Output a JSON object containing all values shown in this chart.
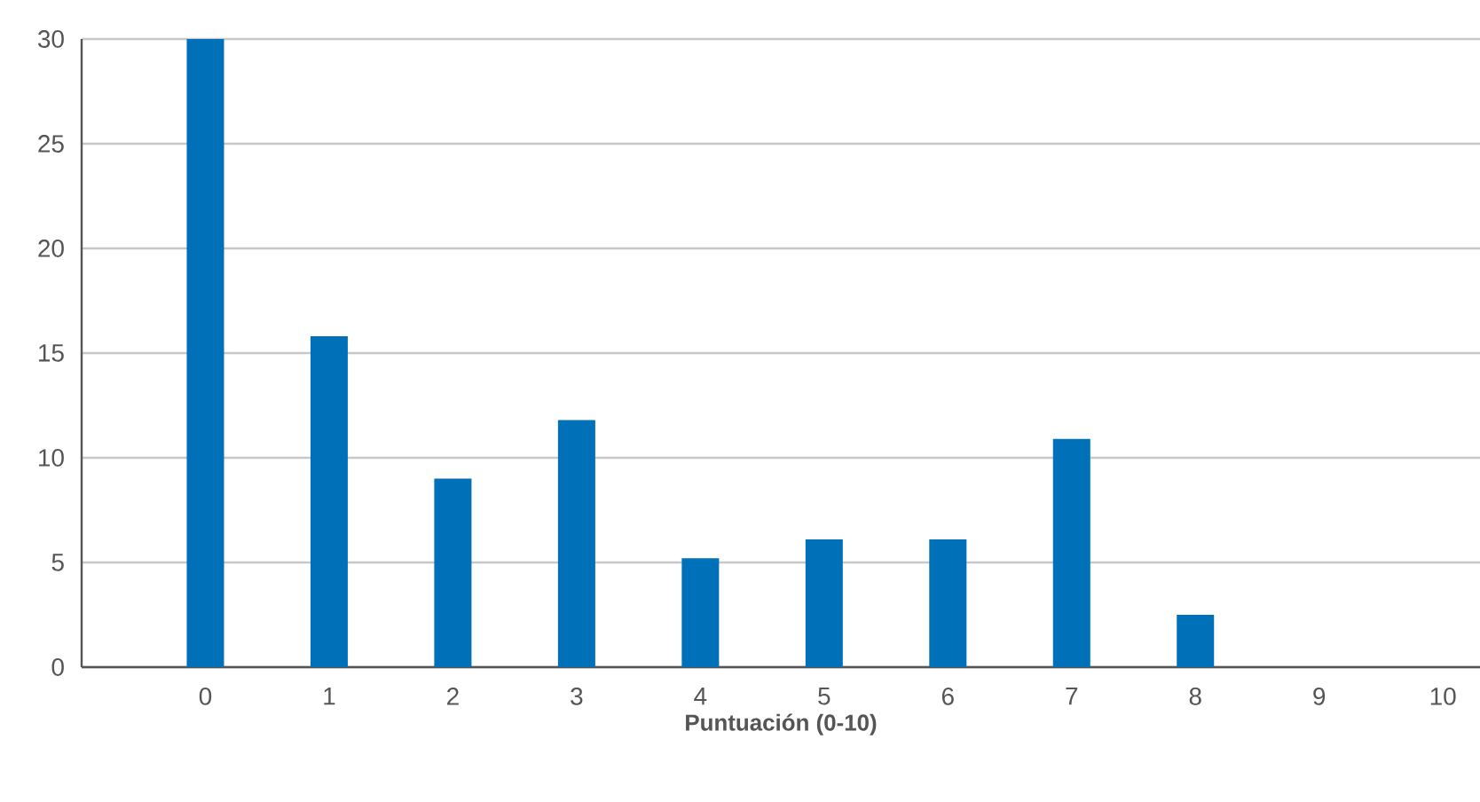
{
  "chart_data": {
    "type": "bar",
    "xlabel": "Puntuación (0-10)",
    "categories": [
      "0",
      "1",
      "2",
      "3",
      "4",
      "5",
      "6",
      "7",
      "8",
      "9",
      "10"
    ],
    "values": [
      30,
      15.8,
      9,
      11.8,
      5.2,
      6.1,
      6.1,
      10.9,
      2.5,
      0,
      0
    ],
    "color": "#0070b8",
    "ylim": [
      0,
      30
    ],
    "yticks": [
      0,
      5,
      10,
      15,
      20,
      25,
      30
    ],
    "grid": "y"
  }
}
